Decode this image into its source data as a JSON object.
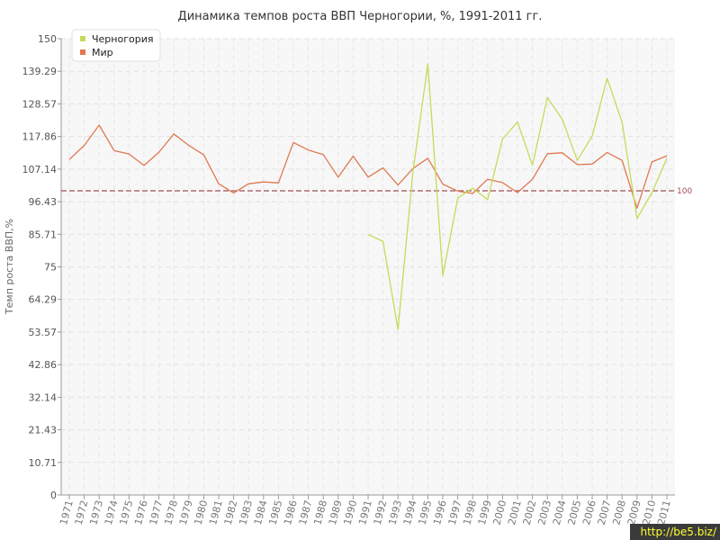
{
  "chart_data": {
    "type": "line",
    "title": "Динамика темпов роста ВВП Черногории, %, 1991-2011 гг.",
    "ylabel": "Темп роста ВВП,%",
    "xlabel": "",
    "ylim": [
      0,
      150
    ],
    "yticks": [
      "0",
      "10.71",
      "21.43",
      "32.14",
      "42.86",
      "53.57",
      "64.29",
      "75",
      "85.71",
      "96.43",
      "107.14",
      "117.86",
      "128.57",
      "139.29",
      "150"
    ],
    "x": [
      "1971",
      "1972",
      "1973",
      "1974",
      "1975",
      "1976",
      "1977",
      "1978",
      "1979",
      "1980",
      "1981",
      "1982",
      "1983",
      "1984",
      "1985",
      "1986",
      "1987",
      "1988",
      "1989",
      "1990",
      "1991",
      "1992",
      "1993",
      "1994",
      "1995",
      "1996",
      "1997",
      "1998",
      "1999",
      "2000",
      "2001",
      "2002",
      "2003",
      "2004",
      "2005",
      "2006",
      "2007",
      "2008",
      "2009",
      "2010",
      "2011"
    ],
    "series": [
      {
        "name": "Черногория",
        "color": "#c3dc5a",
        "values": [
          null,
          null,
          null,
          null,
          null,
          null,
          null,
          null,
          null,
          null,
          null,
          null,
          null,
          null,
          null,
          null,
          null,
          null,
          null,
          null,
          85.6,
          83.4,
          54.4,
          106.2,
          141.7,
          72.1,
          97.6,
          100.9,
          97.1,
          117.0,
          122.6,
          108.4,
          130.7,
          123.5,
          110.0,
          118.0,
          137.0,
          122.5,
          90.9,
          99.4,
          110.7
        ]
      },
      {
        "name": "Мир",
        "color": "#e07850",
        "values": [
          110.3,
          114.9,
          121.6,
          113.2,
          112.1,
          108.3,
          112.7,
          118.7,
          114.9,
          111.8,
          102.3,
          99.3,
          102.3,
          102.9,
          102.6,
          115.9,
          113.4,
          111.9,
          104.5,
          111.4,
          104.5,
          107.5,
          101.9,
          107.3,
          110.7,
          102.2,
          99.9,
          99.1,
          103.8,
          102.7,
          99.4,
          103.8,
          112.2,
          112.5,
          108.6,
          108.8,
          112.6,
          110.0,
          94.3,
          109.5,
          111.5
        ]
      }
    ],
    "reference_line": {
      "value": 100,
      "label": "100",
      "color": "#a0505a"
    },
    "legend": {
      "position": "top-left"
    },
    "grid": true
  },
  "watermark": "http://be5.biz/"
}
